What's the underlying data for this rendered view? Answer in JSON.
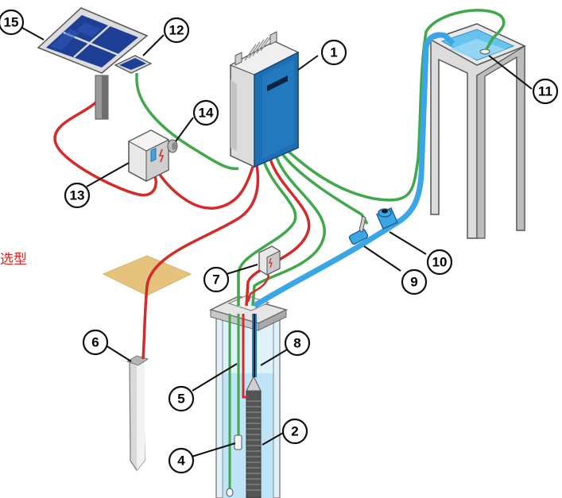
{
  "side_label": "选型",
  "callouts": [
    {
      "id": "1",
      "text": "1"
    },
    {
      "id": "2",
      "text": "2"
    },
    {
      "id": "4",
      "text": "4"
    },
    {
      "id": "5",
      "text": "5"
    },
    {
      "id": "6",
      "text": "6"
    },
    {
      "id": "7",
      "text": "7"
    },
    {
      "id": "8",
      "text": "8"
    },
    {
      "id": "9",
      "text": "9"
    },
    {
      "id": "10",
      "text": "10"
    },
    {
      "id": "11",
      "text": "11"
    },
    {
      "id": "12",
      "text": "12"
    },
    {
      "id": "13",
      "text": "13"
    },
    {
      "id": "14",
      "text": "14"
    },
    {
      "id": "15",
      "text": "15"
    }
  ],
  "colors": {
    "power_cable": "#d42a2a",
    "signal_cable": "#3ea84a",
    "water_pipe": "#3aa6e6",
    "controller": "#1d6fb3",
    "solar_panel": "#1e3f96",
    "ground_patch": "#e5c37d",
    "side_label": "#e02020"
  }
}
